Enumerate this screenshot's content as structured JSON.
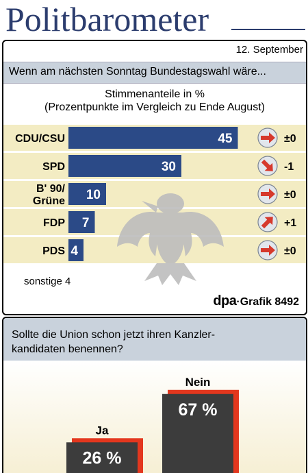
{
  "title": "Politbarometer",
  "date": "12. September",
  "subtitle": "Wenn am nächsten Sonntag Bundestagswahl wäre...",
  "heading": "Stimmenanteile in %",
  "sub_heading": "(Prozentpunkte im Vergleich zu Ende August)",
  "sonstige": "sonstige  4",
  "source": {
    "dpa": "dpa",
    "rest": "·Grafik 8492"
  },
  "colors": {
    "title": "#2c3d6e",
    "bar": "#2b4a87",
    "arrow": "#d6392c",
    "band": "#f3ecc3",
    "poll_dark": "#3c3c3c",
    "poll_accent": "#e3371e"
  },
  "chart_data": [
    {
      "type": "bar",
      "orientation": "horizontal",
      "categories": [
        "CDU/CSU",
        "SPD",
        "B' 90/\nGrüne",
        "FDP",
        "PDS"
      ],
      "values": [
        45,
        30,
        10,
        7,
        4
      ],
      "value_labels": [
        "45",
        "30",
        "10",
        "7",
        "4"
      ],
      "changes": [
        "±0",
        "-1",
        "±0",
        "+1",
        "±0"
      ],
      "change_arrows": [
        "right",
        "down-right",
        "right",
        "up-right",
        "right"
      ],
      "ylim": [
        0,
        50
      ]
    },
    {
      "type": "bar",
      "title": "Sollte die Union schon jetzt ihren Kanzler-\nkandidaten benennen?",
      "categories": [
        "Ja",
        "Nein"
      ],
      "values": [
        26,
        67
      ],
      "value_labels": [
        "26 %",
        "67 %"
      ]
    }
  ]
}
